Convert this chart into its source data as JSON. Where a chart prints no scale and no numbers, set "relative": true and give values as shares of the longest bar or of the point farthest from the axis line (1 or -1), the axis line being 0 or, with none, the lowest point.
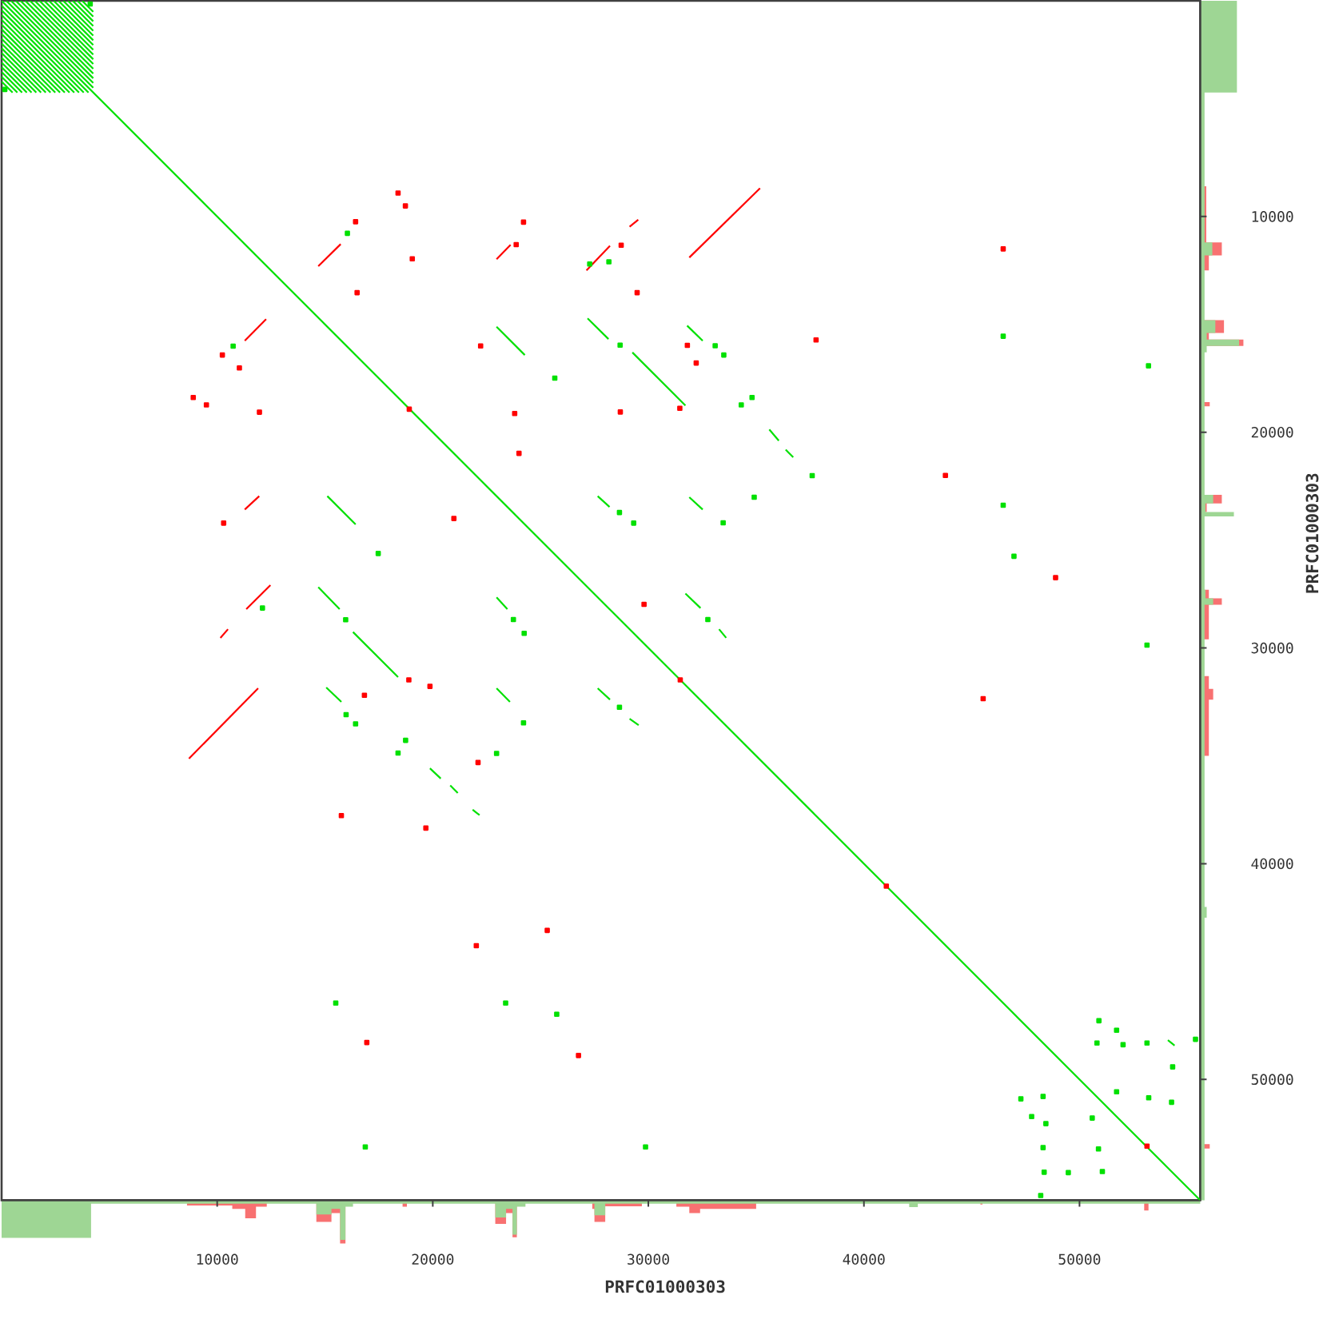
{
  "chart_data": [
    {
      "type": "line",
      "xlabel": "PRFC01000303",
      "ylabel": "PRFC01000303",
      "xlim": [
        0,
        55600
      ],
      "ylim": [
        55600,
        0
      ],
      "xticks": [
        10000,
        20000,
        30000,
        40000,
        50000
      ],
      "yticks": [
        10000,
        20000,
        30000,
        40000,
        50000
      ],
      "series": [
        {
          "color": "#00e000",
          "x": [
            0,
            55600
          ],
          "values": [
            0,
            55600
          ]
        },
        {
          "color": "#00e000",
          "x": [
            220,
            4250
          ],
          "values": [
            0,
            4030
          ]
        },
        {
          "color": "#00e000",
          "x": [
            440,
            4250
          ],
          "values": [
            0,
            3810
          ]
        },
        {
          "color": "#00e000",
          "x": [
            660,
            4250
          ],
          "values": [
            0,
            3590
          ]
        },
        {
          "color": "#00e000",
          "x": [
            880,
            4250
          ],
          "values": [
            0,
            3370
          ]
        },
        {
          "color": "#00e000",
          "x": [
            1100,
            4250
          ],
          "values": [
            0,
            3150
          ]
        },
        {
          "color": "#00e000",
          "x": [
            1320,
            4250
          ],
          "values": [
            0,
            2930
          ]
        },
        {
          "color": "#00e000",
          "x": [
            1540,
            4250
          ],
          "values": [
            0,
            2710
          ]
        },
        {
          "color": "#00e000",
          "x": [
            1760,
            4250
          ],
          "values": [
            0,
            2490
          ]
        },
        {
          "color": "#00e000",
          "x": [
            1980,
            4250
          ],
          "values": [
            0,
            2270
          ]
        },
        {
          "color": "#00e000",
          "x": [
            2200,
            4250
          ],
          "values": [
            0,
            2050
          ]
        },
        {
          "color": "#00e000",
          "x": [
            2420,
            4250
          ],
          "values": [
            0,
            1830
          ]
        },
        {
          "color": "#00e000",
          "x": [
            2640,
            4250
          ],
          "values": [
            0,
            1610
          ]
        },
        {
          "color": "#00e000",
          "x": [
            2860,
            4250
          ],
          "values": [
            0,
            1390
          ]
        },
        {
          "color": "#00e000",
          "x": [
            3080,
            4250
          ],
          "values": [
            0,
            1170
          ]
        },
        {
          "color": "#00e000",
          "x": [
            3300,
            4250
          ],
          "values": [
            0,
            950
          ]
        },
        {
          "color": "#00e000",
          "x": [
            3520,
            4250
          ],
          "values": [
            0,
            730
          ]
        },
        {
          "color": "#00e000",
          "x": [
            3740,
            4250
          ],
          "values": [
            0,
            510
          ]
        },
        {
          "color": "#00e000",
          "x": [
            0,
            4030
          ],
          "values": [
            220,
            4250
          ]
        },
        {
          "color": "#00e000",
          "x": [
            0,
            3810
          ],
          "values": [
            440,
            4250
          ]
        },
        {
          "color": "#00e000",
          "x": [
            0,
            3590
          ],
          "values": [
            660,
            4250
          ]
        },
        {
          "color": "#00e000",
          "x": [
            0,
            3370
          ],
          "values": [
            880,
            4250
          ]
        },
        {
          "color": "#00e000",
          "x": [
            0,
            3150
          ],
          "values": [
            1100,
            4250
          ]
        },
        {
          "color": "#00e000",
          "x": [
            0,
            2930
          ],
          "values": [
            1320,
            4250
          ]
        },
        {
          "color": "#00e000",
          "x": [
            0,
            2710
          ],
          "values": [
            1540,
            4250
          ]
        },
        {
          "color": "#00e000",
          "x": [
            0,
            2490
          ],
          "values": [
            1760,
            4250
          ]
        },
        {
          "color": "#00e000",
          "x": [
            0,
            2270
          ],
          "values": [
            1980,
            4250
          ]
        },
        {
          "color": "#00e000",
          "x": [
            0,
            2050
          ],
          "values": [
            2200,
            4250
          ]
        },
        {
          "color": "#00e000",
          "x": [
            0,
            1830
          ],
          "values": [
            2420,
            4250
          ]
        },
        {
          "color": "#00e000",
          "x": [
            0,
            1610
          ],
          "values": [
            2640,
            4250
          ]
        },
        {
          "color": "#00e000",
          "x": [
            0,
            1390
          ],
          "values": [
            2860,
            4250
          ]
        },
        {
          "color": "#00e000",
          "x": [
            0,
            1170
          ],
          "values": [
            3080,
            4250
          ]
        },
        {
          "color": "#00e000",
          "x": [
            0,
            950
          ],
          "values": [
            3300,
            4250
          ]
        },
        {
          "color": "#00e000",
          "x": [
            0,
            730
          ],
          "values": [
            3520,
            4250
          ]
        },
        {
          "color": "#00e000",
          "x": [
            0,
            510
          ],
          "values": [
            3740,
            4250
          ]
        },
        {
          "color": "#00e000",
          "x": [
            22960,
            24270
          ],
          "values": [
            15110,
            16420
          ]
        },
        {
          "color": "#00e000",
          "x": [
            27180,
            28150
          ],
          "values": [
            14720,
            15680
          ]
        },
        {
          "color": "#00e000",
          "x": [
            29260,
            31720
          ],
          "values": [
            16300,
            18760
          ]
        },
        {
          "color": "#00e000",
          "x": [
            15110,
            16420
          ],
          "values": [
            22960,
            24270
          ]
        },
        {
          "color": "#00e000",
          "x": [
            27650,
            28200
          ],
          "values": [
            22960,
            23460
          ]
        },
        {
          "color": "#00e000",
          "x": [
            14690,
            15680
          ],
          "values": [
            27180,
            28200
          ]
        },
        {
          "color": "#00e000",
          "x": [
            16300,
            18390
          ],
          "values": [
            29260,
            31350
          ]
        },
        {
          "color": "#00e000",
          "x": [
            22960,
            23460
          ],
          "values": [
            27650,
            28200
          ]
        },
        {
          "color": "#00e000",
          "x": [
            31800,
            32520
          ],
          "values": [
            15060,
            15760
          ]
        },
        {
          "color": "#00e000",
          "x": [
            35610,
            36050
          ],
          "values": [
            19870,
            20390
          ]
        },
        {
          "color": "#00e000",
          "x": [
            36370,
            36720
          ],
          "values": [
            20810,
            21160
          ]
        },
        {
          "color": "#00e000",
          "x": [
            31900,
            32520
          ],
          "values": [
            23010,
            23580
          ]
        },
        {
          "color": "#00e000",
          "x": [
            31720,
            32420
          ],
          "values": [
            27480,
            28150
          ]
        },
        {
          "color": "#00e000",
          "x": [
            33280,
            33610
          ],
          "values": [
            29130,
            29530
          ]
        },
        {
          "color": "#00e000",
          "x": [
            15060,
            15760
          ],
          "values": [
            31830,
            32500
          ]
        },
        {
          "color": "#00e000",
          "x": [
            19870,
            20370
          ],
          "values": [
            35580,
            36050
          ]
        },
        {
          "color": "#00e000",
          "x": [
            20810,
            21160
          ],
          "values": [
            36370,
            36720
          ]
        },
        {
          "color": "#00e000",
          "x": [
            21850,
            22170
          ],
          "values": [
            37500,
            37750
          ]
        },
        {
          "color": "#00e000",
          "x": [
            22960,
            23580
          ],
          "values": [
            31870,
            32500
          ]
        },
        {
          "color": "#00e000",
          "x": [
            27650,
            28220
          ],
          "values": [
            31870,
            32390
          ]
        },
        {
          "color": "#00e000",
          "x": [
            29130,
            29550
          ],
          "values": [
            33280,
            33580
          ]
        },
        {
          "color": "#00e000",
          "x": [
            54100,
            54410
          ],
          "values": [
            48180,
            48430
          ]
        },
        {
          "color": "#ff0000",
          "x": [
            14690,
            15730
          ],
          "values": [
            12300,
            11280
          ]
        },
        {
          "color": "#ff0000",
          "x": [
            22960,
            23610
          ],
          "values": [
            11980,
            11310
          ]
        },
        {
          "color": "#ff0000",
          "x": [
            27130,
            28220
          ],
          "values": [
            12500,
            11360
          ]
        },
        {
          "color": "#ff0000",
          "x": [
            29130,
            29530
          ],
          "values": [
            10470,
            10150
          ]
        },
        {
          "color": "#ff0000",
          "x": [
            11280,
            12270
          ],
          "values": [
            15760,
            14760
          ]
        },
        {
          "color": "#ff0000",
          "x": [
            11280,
            11950
          ],
          "values": [
            23580,
            22960
          ]
        },
        {
          "color": "#ff0000",
          "x": [
            11350,
            12470
          ],
          "values": [
            28200,
            27090
          ]
        },
        {
          "color": "#ff0000",
          "x": [
            10150,
            10500
          ],
          "values": [
            29530,
            29130
          ]
        },
        {
          "color": "#ff0000",
          "x": [
            31900,
            35180
          ],
          "values": [
            11900,
            8690
          ]
        },
        {
          "color": "#ff0000",
          "x": [
            8690,
            11900
          ],
          "values": [
            35130,
            31870
          ]
        },
        {
          "type": "scatter",
          "marker": "square",
          "color": "#00e000",
          "x": [
            4110,
            150,
            28690,
            25660,
            16040,
            10740,
            17470,
            28660,
            29320,
            15960,
            23740,
            24240,
            27280,
            28170,
            12100,
            33100,
            33500,
            34310,
            34810,
            37600,
            46460,
            53200,
            33470,
            34910,
            46460,
            46960,
            32760,
            53130,
            15980,
            16420,
            18740,
            18390,
            24210,
            22960,
            28660,
            15500,
            23380,
            25750,
            16870,
            29870,
            50900,
            51720,
            50810,
            52020,
            53130,
            55380,
            54320,
            47280,
            48310,
            51720,
            53210,
            54270,
            47780,
            48440,
            50590,
            48310,
            50880,
            48360,
            49480,
            51060,
            48200
          ],
          "values": [
            150,
            4110,
            15960,
            17490,
            10780,
            16010,
            25620,
            23720,
            24210,
            28690,
            28680,
            29320,
            12200,
            12100,
            28150,
            15990,
            16420,
            18730,
            18390,
            22010,
            15550,
            16920,
            24200,
            23010,
            23380,
            25750,
            28680,
            29870,
            33090,
            33520,
            34280,
            34870,
            33470,
            34890,
            32750,
            46460,
            46460,
            46980,
            53130,
            53130,
            47280,
            47720,
            48310,
            48390,
            48310,
            48140,
            49420,
            50900,
            50790,
            50570,
            50850,
            51060,
            51720,
            52050,
            51790,
            53160,
            53220,
            54300,
            54320,
            54270,
            55380
          ]
        },
        {
          "type": "scatter",
          "marker": "square",
          "color": "#ff0000",
          "x": [
            16420,
            18730,
            18390,
            19050,
            16490,
            23870,
            24210,
            28740,
            29480,
            10240,
            11030,
            8890,
            9500,
            11960,
            22220,
            18910,
            23800,
            28700,
            24000,
            10300,
            20980,
            29800,
            46460,
            31810,
            32220,
            37780,
            43780,
            48890,
            31460,
            16830,
            18890,
            19870,
            22100,
            15760,
            19680,
            25310,
            22020,
            16940,
            26760,
            31480,
            45530,
            41040,
            53130
          ],
          "values": [
            10240,
            9510,
            8910,
            11960,
            13530,
            11300,
            10260,
            11330,
            13530,
            16420,
            17020,
            18390,
            18730,
            19070,
            16000,
            18930,
            19130,
            19060,
            20980,
            24210,
            24000,
            27980,
            11500,
            15970,
            16790,
            15720,
            22000,
            26740,
            18890,
            32190,
            31480,
            31780,
            35310,
            37770,
            38350,
            43090,
            43800,
            48290,
            48890,
            31480,
            32350,
            41040,
            53090
          ]
        }
      ]
    },
    {
      "type": "area",
      "orientation": "horizontal",
      "relative": true,
      "ylim": [
        55600,
        0
      ],
      "series": [
        {
          "color": "#f87171",
          "x": [
            0,
            8600,
            8600,
            11200,
            11200,
            11800,
            11800,
            12500,
            12500,
            14800,
            14800,
            15400,
            15400,
            15700,
            15700,
            16000,
            16000,
            18600,
            18600,
            18800,
            18800,
            22900,
            22900,
            23300,
            23300,
            23700,
            23700,
            27300,
            27300,
            27700,
            27700,
            28000,
            28000,
            29600,
            29600,
            31300,
            31300,
            31900,
            31900,
            32400,
            32400,
            35000,
            35000,
            53000,
            53000,
            53200,
            53200,
            55600
          ],
          "values": [
            0,
            0,
            0.14,
            0.14,
            0.5,
            0.5,
            0.2,
            0.2,
            0,
            0,
            0.55,
            0.55,
            0.2,
            0.2,
            1,
            1,
            0,
            0,
            0.22,
            0.22,
            0,
            0,
            0.5,
            0.5,
            0.15,
            0.15,
            0,
            0,
            0.2,
            0.2,
            0.5,
            0.5,
            0.2,
            0.2,
            0,
            0,
            0.2,
            0.2,
            0.3,
            0.3,
            0.2,
            0.2,
            0,
            0,
            0.22,
            0.22,
            0,
            0
          ]
        },
        {
          "color": "#9ed694",
          "x": [
            0,
            4250,
            4250,
            11200,
            11200,
            11800,
            11800,
            14800,
            14800,
            15400,
            15400,
            15700,
            15700,
            16000,
            16000,
            16300,
            16300,
            22900,
            22900,
            23300,
            23300,
            23700,
            23700,
            23900,
            23900,
            27300,
            27300,
            27700,
            27700,
            28000,
            28000,
            42000,
            42000,
            42500,
            42500,
            55600
          ],
          "values": [
            0.85,
            0.85,
            0.1,
            0.1,
            0.28,
            0.28,
            0.1,
            0.1,
            0.35,
            0.35,
            0.15,
            0.15,
            0.9,
            0.9,
            0.15,
            0.15,
            0.1,
            0.1,
            0.3,
            0.3,
            0.12,
            0.12,
            0.78,
            0.78,
            0.1,
            0.1,
            0.12,
            0.12,
            0.3,
            0.3,
            0.1,
            0.1,
            0.15,
            0.15,
            0.1,
            0.1
          ]
        }
      ]
    },
    {
      "type": "area",
      "relative": true,
      "xlim": [
        0,
        55600
      ],
      "series": [
        {
          "color": "#f87171",
          "x": [
            0,
            8600,
            8600,
            10700,
            10700,
            11300,
            11300,
            11800,
            11800,
            12300,
            12300,
            14600,
            14600,
            15300,
            15300,
            15700,
            15700,
            15950,
            15950,
            18600,
            18600,
            18800,
            18800,
            22900,
            22900,
            23400,
            23400,
            23700,
            23700,
            23900,
            23900,
            27400,
            27400,
            27500,
            27500,
            28000,
            28000,
            29700,
            29700,
            31300,
            31300,
            31900,
            31900,
            32400,
            32400,
            35000,
            35000,
            45400,
            45400,
            45500,
            45500,
            53000,
            53000,
            53200,
            53200,
            55600
          ],
          "values": [
            0,
            0,
            -0.12,
            -0.12,
            -0.2,
            -0.2,
            -0.42,
            -0.42,
            -0.15,
            -0.15,
            0,
            0,
            -0.5,
            -0.5,
            -0.3,
            -0.3,
            -1,
            -1,
            0,
            0,
            -0.15,
            -0.15,
            0,
            0,
            -0.55,
            -0.55,
            -0.3,
            -0.3,
            -0.86,
            -0.86,
            0,
            0,
            -0.2,
            -0.2,
            -0.5,
            -0.5,
            -0.14,
            -0.14,
            0,
            0,
            -0.15,
            -0.15,
            -0.3,
            -0.3,
            -0.2,
            -0.2,
            0,
            0,
            -0.1,
            -0.1,
            0,
            0,
            -0.24,
            -0.24,
            0,
            0
          ]
        },
        {
          "color": "#9ed694",
          "x": [
            0,
            4150,
            4150,
            14600,
            14600,
            15300,
            15300,
            15700,
            15700,
            15950,
            15950,
            16300,
            16300,
            22900,
            22900,
            23400,
            23400,
            23700,
            23700,
            23900,
            23900,
            24300,
            24300,
            27500,
            27500,
            28000,
            28000,
            42100,
            42100,
            42500,
            42500,
            55600
          ],
          "values": [
            -0.87,
            -0.87,
            -0.08,
            -0.08,
            -0.33,
            -0.33,
            -0.2,
            -0.2,
            -0.92,
            -0.92,
            -0.15,
            -0.15,
            -0.08,
            -0.08,
            -0.4,
            -0.4,
            -0.2,
            -0.2,
            -0.8,
            -0.8,
            -0.15,
            -0.15,
            -0.08,
            -0.08,
            -0.35,
            -0.35,
            -0.08,
            -0.08,
            -0.16,
            -0.16,
            -0.08,
            -0.08
          ]
        }
      ]
    }
  ]
}
